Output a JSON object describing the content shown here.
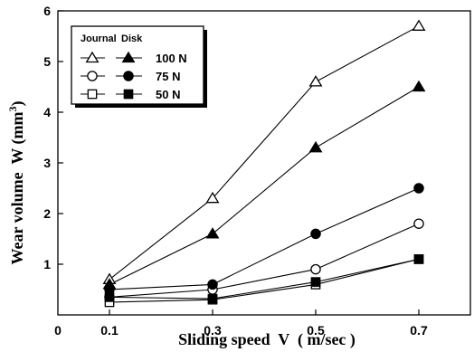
{
  "chart_data": {
    "type": "line",
    "title": "",
    "xlabel": "Sliding speed  V  ( m/sec )",
    "ylabel_main": "Wear volume  W (mm",
    "ylabel_sup": "3",
    "ylabel_close": ")",
    "x": [
      0.1,
      0.3,
      0.5,
      0.7
    ],
    "xticks": [
      "0.1",
      "0.3",
      "0.5",
      "0.7"
    ],
    "yticks": [
      "1",
      "2",
      "3",
      "4",
      "5",
      "6"
    ],
    "origin_label": "0",
    "xlim": [
      0,
      0.8
    ],
    "ylim": [
      0,
      6
    ],
    "grid": false,
    "legend": {
      "placement": "top-left",
      "header_journal": "Journal",
      "header_disk": "Disk",
      "loads": [
        "100 N",
        "75 N",
        "50 N"
      ]
    },
    "series": [
      {
        "name": "100 N",
        "part": "Journal",
        "marker": "triangle-open",
        "values": [
          0.7,
          2.3,
          4.6,
          5.7
        ]
      },
      {
        "name": "100 N",
        "part": "Disk",
        "marker": "triangle-filled",
        "values": [
          0.6,
          1.6,
          3.3,
          4.5
        ]
      },
      {
        "name": "75 N",
        "part": "Journal",
        "marker": "circle-open",
        "values": [
          0.35,
          0.5,
          0.9,
          1.8
        ]
      },
      {
        "name": "75 N",
        "part": "Disk",
        "marker": "circle-filled",
        "values": [
          0.5,
          0.6,
          1.6,
          2.5
        ]
      },
      {
        "name": "50 N",
        "part": "Journal",
        "marker": "square-open",
        "values": [
          0.25,
          0.3,
          0.6,
          1.1
        ]
      },
      {
        "name": "50 N",
        "part": "Disk",
        "marker": "square-filled",
        "values": [
          0.35,
          0.32,
          0.65,
          1.1
        ]
      }
    ]
  }
}
